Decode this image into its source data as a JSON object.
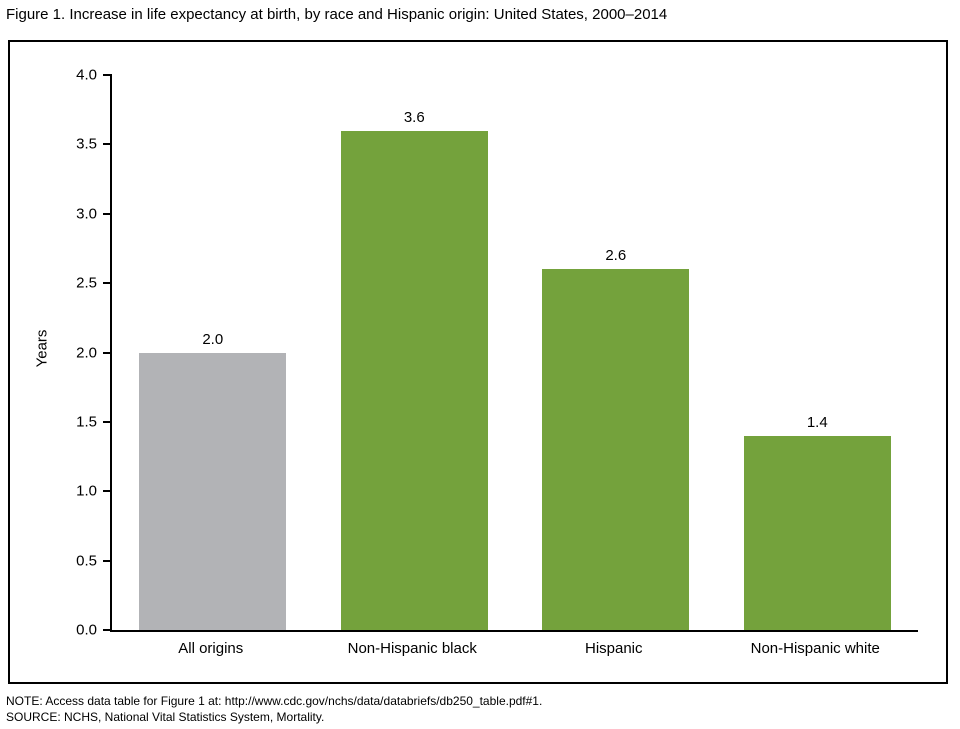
{
  "chart_data": {
    "type": "bar",
    "title": "Figure 1. Increase in life expectancy at birth, by race and Hispanic origin: United States, 2000–2014",
    "categories": [
      "All origins",
      "Non-Hispanic black",
      "Hispanic",
      "Non-Hispanic white"
    ],
    "values": [
      2.0,
      3.6,
      2.6,
      1.4
    ],
    "value_labels": [
      "2.0",
      "3.6",
      "2.6",
      "1.4"
    ],
    "bar_colors": [
      "#b2b3b6",
      "#74a23c",
      "#74a23c",
      "#74a23c"
    ],
    "ylabel": "Years",
    "ylim": [
      0,
      4
    ],
    "yticks": [
      "4.0",
      "3.5",
      "3.0",
      "2.5",
      "2.0",
      "1.5",
      "1.0",
      "0.5",
      "0.0"
    ],
    "grid": false,
    "legend_position": "none"
  },
  "notes": {
    "note_line": "NOTE: Access data table for Figure 1 at: http://www.cdc.gov/nchs/data/databriefs/db250_table.pdf#1.",
    "source_line": "SOURCE: NCHS, National Vital Statistics System, Mortality."
  }
}
